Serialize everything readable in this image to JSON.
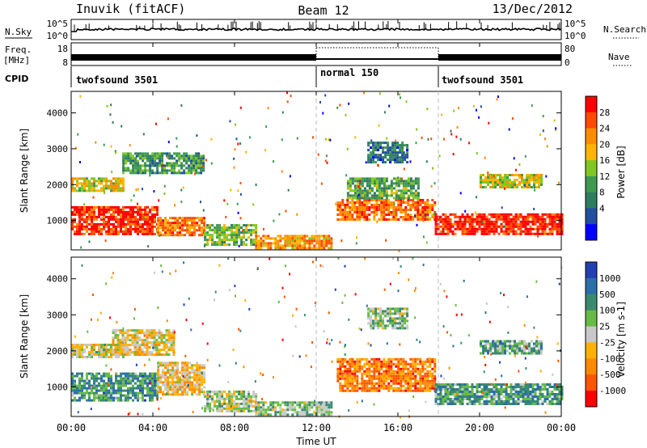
{
  "header": {
    "site": "Inuvik (fitACF)",
    "beam": "Beam 12",
    "date": "13/Dec/2012"
  },
  "left_labels": {
    "nsky": "N.Sky",
    "freq1": "Freq.",
    "freq2": "[MHz]",
    "cpid": "CPID"
  },
  "right_labels": {
    "nsearch": "N.Search",
    "nave": "Nave"
  },
  "noise_axis": {
    "ticks": [
      "10^5",
      "10^0"
    ]
  },
  "freq_axis": {
    "left_ticks": [
      "18",
      "8"
    ],
    "right_ticks": [
      "80",
      "0"
    ]
  },
  "cpid": [
    {
      "label": "twofsound 3501",
      "start_hour": 0
    },
    {
      "label": "normal 150",
      "start_hour": 12
    },
    {
      "label": "twofsound 3501",
      "start_hour": 18
    }
  ],
  "time_axis": {
    "label": "Time UT",
    "ticks": [
      "00:00",
      "04:00",
      "08:00",
      "12:00",
      "16:00",
      "20:00",
      "00:00"
    ]
  },
  "chart_data": [
    {
      "type": "heatmap",
      "ylabel": "Slant Range [km]",
      "ylim": [
        180,
        4600
      ],
      "yticks": [
        "4000",
        "3000",
        "2000",
        "1000"
      ],
      "xlim_hours": [
        0,
        24
      ],
      "colorbar": {
        "label": "Power [dB]",
        "ticks": [
          "28",
          "24",
          "20",
          "16",
          "12",
          "8",
          "4"
        ],
        "colors": [
          "#ff0000",
          "#ff4a00",
          "#ff8c00",
          "#ffb400",
          "#80c820",
          "#3f9a50",
          "#2e7d60",
          "#204fa0",
          "#0000ff"
        ]
      },
      "regions": [
        {
          "hours": [
            0,
            4.2
          ],
          "range": [
            600,
            1400
          ],
          "level": 0.9
        },
        {
          "hours": [
            4.2,
            6.5
          ],
          "range": [
            600,
            1100
          ],
          "level": 0.75
        },
        {
          "hours": [
            6.5,
            9.0
          ],
          "range": [
            300,
            900
          ],
          "level": 0.45
        },
        {
          "hours": [
            9.0,
            12.8
          ],
          "range": [
            200,
            600
          ],
          "level": 0.7
        },
        {
          "hours": [
            13.0,
            17.8
          ],
          "range": [
            1000,
            1600
          ],
          "level": 0.8
        },
        {
          "hours": [
            17.8,
            24
          ],
          "range": [
            600,
            1200
          ],
          "level": 0.92
        },
        {
          "hours": [
            0,
            2.5
          ],
          "range": [
            1800,
            2200
          ],
          "level": 0.6
        },
        {
          "hours": [
            13.5,
            17.0
          ],
          "range": [
            1600,
            2200
          ],
          "level": 0.4
        },
        {
          "hours": [
            14.5,
            16.5
          ],
          "range": [
            2600,
            3200
          ],
          "level": 0.25
        },
        {
          "hours": [
            20,
            23
          ],
          "range": [
            1900,
            2300
          ],
          "level": 0.55
        },
        {
          "hours": [
            2.5,
            6.5
          ],
          "range": [
            2300,
            2900
          ],
          "level": 0.35
        }
      ]
    },
    {
      "type": "heatmap",
      "ylabel": "Slant Range [km]",
      "ylim": [
        180,
        4600
      ],
      "yticks": [
        "4000",
        "3000",
        "2000",
        "1000"
      ],
      "xlim_hours": [
        0,
        24
      ],
      "colorbar": {
        "label": "Velocity [m s-1]",
        "ticks": [
          "1000",
          "500",
          "100",
          "25",
          "-25",
          "-100",
          "-500",
          "-1000"
        ],
        "colors": [
          "#2040b0",
          "#2a6fa8",
          "#3a8a70",
          "#66bb44",
          "#c8c8c8",
          "#ffb000",
          "#ff8800",
          "#ff5500",
          "#ff0000"
        ]
      },
      "regions": [
        {
          "hours": [
            0,
            4.2
          ],
          "range": [
            600,
            1400
          ],
          "level": 0.72
        },
        {
          "hours": [
            4.2,
            6.5
          ],
          "range": [
            800,
            1700
          ],
          "level": 0.4
        },
        {
          "hours": [
            6.5,
            9.0
          ],
          "range": [
            300,
            900
          ],
          "level": 0.55
        },
        {
          "hours": [
            9.0,
            12.8
          ],
          "range": [
            200,
            600
          ],
          "level": 0.6
        },
        {
          "hours": [
            13.0,
            17.8
          ],
          "range": [
            900,
            1800
          ],
          "level": 0.25
        },
        {
          "hours": [
            17.8,
            24
          ],
          "range": [
            500,
            1100
          ],
          "level": 0.7
        },
        {
          "hours": [
            0,
            2.5
          ],
          "range": [
            1800,
            2200
          ],
          "level": 0.5
        },
        {
          "hours": [
            2.0,
            5.0
          ],
          "range": [
            1900,
            2600
          ],
          "level": 0.45
        },
        {
          "hours": [
            14.5,
            16.5
          ],
          "range": [
            2600,
            3200
          ],
          "level": 0.6
        },
        {
          "hours": [
            20,
            23
          ],
          "range": [
            1900,
            2300
          ],
          "level": 0.65
        }
      ]
    }
  ]
}
